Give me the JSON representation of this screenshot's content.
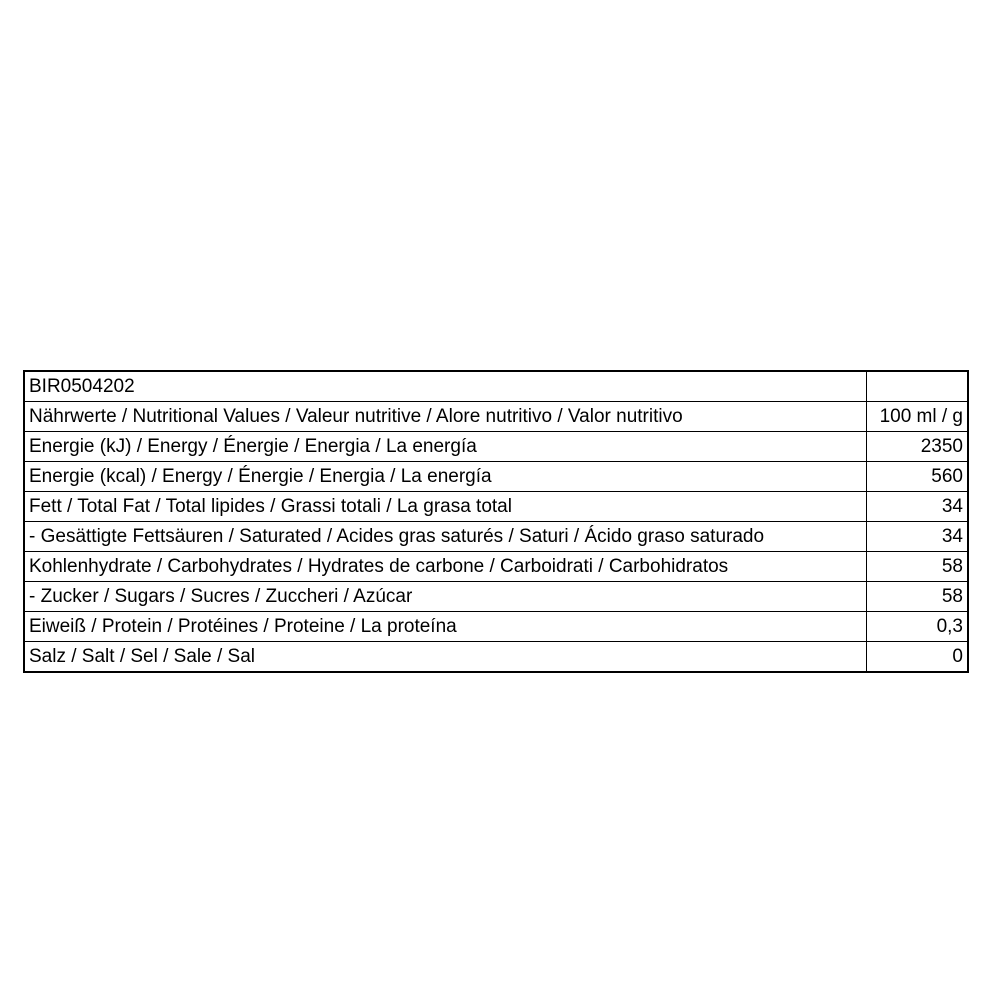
{
  "table": {
    "rows": [
      {
        "label": "BIR0504202",
        "value": ""
      },
      {
        "label": "Nährwerte / Nutritional Values / Valeur nutritive / Alore nutritivo / Valor nutritivo",
        "value": "100 ml / g"
      },
      {
        "label": "Energie (kJ) / Energy / Énergie / Energia / La energía",
        "value": "2350"
      },
      {
        "label": "Energie (kcal) / Energy / Énergie / Energia / La energía",
        "value": "560"
      },
      {
        "label": "Fett / Total Fat / Total lipides / Grassi totali / La grasa total",
        "value": "34"
      },
      {
        "label": "- Gesättigte Fettsäuren / Saturated / Acides gras saturés / Saturi / Ácido graso saturado",
        "value": "34"
      },
      {
        "label": "Kohlenhydrate / Carbohydrates / Hydrates de carbone / Carboidrati / Carbohidratos",
        "value": "58"
      },
      {
        "label": "- Zucker / Sugars / Sucres / Zuccheri / Azúcar",
        "value": "58"
      },
      {
        "label": "Eiweiß / Protein / Protéines / Proteine / La proteína",
        "value": "0,3"
      },
      {
        "label": "Salz / Salt / Sel / Sale / Sal",
        "value": "0"
      }
    ]
  }
}
